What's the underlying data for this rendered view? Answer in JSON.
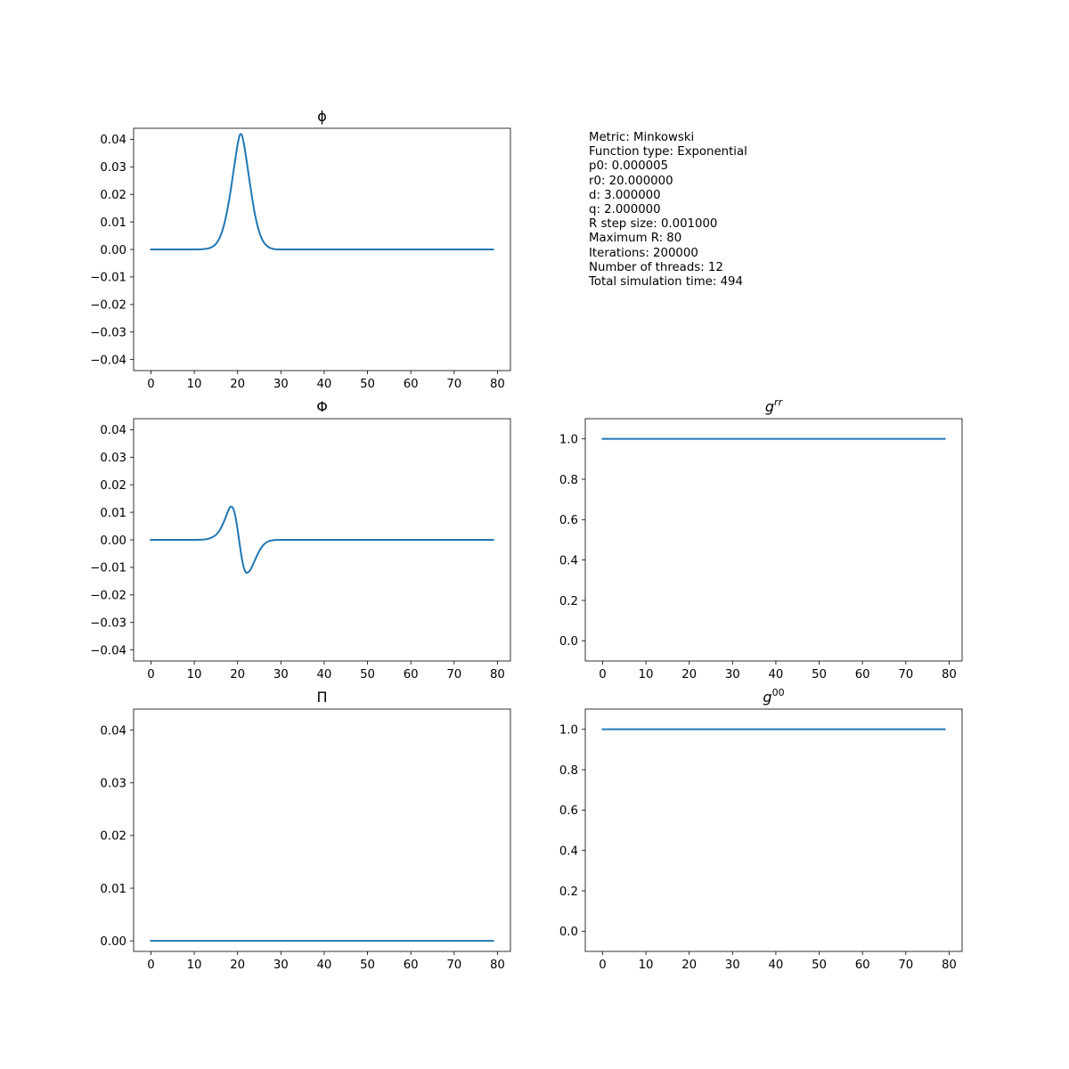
{
  "info_panel": [
    "Metric: Minkowski",
    "Function type: Exponential",
    "p0: 0.000005",
    "r0: 20.000000",
    "d: 3.000000",
    "q: 2.000000",
    "R step size: 0.001000",
    "Maximum R: 80",
    "Iterations: 200000",
    "Number of threads: 12",
    "Total simulation time: 494"
  ],
  "line_color": "#1f77b4",
  "chart_data": [
    {
      "id": "phi",
      "type": "line",
      "title_base": "ϕ",
      "title_sup": "",
      "xlim": [
        -4,
        83
      ],
      "ylim": [
        -0.044,
        0.044
      ],
      "xticks": [
        "0",
        "10",
        "20",
        "30",
        "40",
        "50",
        "60",
        "70",
        "80"
      ],
      "yticks": [
        "−0.04",
        "−0.03",
        "−0.02",
        "−0.01",
        "0.00",
        "0.01",
        "0.02",
        "0.03",
        "0.04"
      ],
      "x": [
        0,
        10,
        12,
        13,
        14,
        15,
        16,
        17,
        18,
        19,
        19.5,
        20,
        20.5,
        21,
        21.5,
        22,
        23,
        24,
        25,
        26,
        27,
        28,
        30,
        40,
        50,
        60,
        70,
        79
      ],
      "y": [
        0,
        0,
        0.0001,
        0.0003,
        0.0008,
        0.002,
        0.0047,
        0.0097,
        0.0175,
        0.0277,
        0.0331,
        0.038,
        0.0415,
        0.0415,
        0.038,
        0.0331,
        0.0224,
        0.0128,
        0.0064,
        0.0027,
        0.001,
        0.0003,
        0,
        0,
        0,
        0,
        0,
        0
      ]
    },
    {
      "id": "Phi",
      "type": "line",
      "title_base": "Φ",
      "title_sup": "",
      "xlim": [
        -4,
        83
      ],
      "ylim": [
        -0.044,
        0.044
      ],
      "xticks": [
        "0",
        "10",
        "20",
        "30",
        "40",
        "50",
        "60",
        "70",
        "80"
      ],
      "yticks": [
        "−0.04",
        "−0.03",
        "−0.02",
        "−0.01",
        "0.00",
        "0.01",
        "0.02",
        "0.03",
        "0.04"
      ],
      "x": [
        0,
        10,
        12,
        13,
        14,
        15,
        16,
        17,
        18,
        18.5,
        19,
        19.5,
        20,
        20.5,
        21,
        21.5,
        22,
        22.5,
        23,
        24,
        25,
        26,
        27,
        28,
        30,
        40,
        50,
        60,
        70,
        79
      ],
      "y": [
        0,
        0,
        0.0001,
        0.0003,
        0.0008,
        0.0018,
        0.0038,
        0.0072,
        0.0112,
        0.0121,
        0.0113,
        0.0085,
        0.0038,
        -0.0018,
        -0.0068,
        -0.0104,
        -0.0119,
        -0.0117,
        -0.0108,
        -0.0074,
        -0.0041,
        -0.0018,
        -0.0006,
        -0.0002,
        0,
        0,
        0,
        0,
        0,
        0
      ]
    },
    {
      "id": "grr",
      "type": "line",
      "title_base": "g",
      "title_sup": "rr",
      "xlim": [
        -4,
        83
      ],
      "ylim": [
        -0.1,
        1.1
      ],
      "xticks": [
        "0",
        "10",
        "20",
        "30",
        "40",
        "50",
        "60",
        "70",
        "80"
      ],
      "yticks": [
        "0.0",
        "0.2",
        "0.4",
        "0.6",
        "0.8",
        "1.0"
      ],
      "x": [
        0,
        79
      ],
      "y": [
        1.0,
        1.0
      ]
    },
    {
      "id": "Pi",
      "type": "line",
      "title_base": "Π",
      "title_sup": "",
      "xlim": [
        -4,
        83
      ],
      "ylim": [
        -0.002,
        0.044
      ],
      "xticks": [
        "0",
        "10",
        "20",
        "30",
        "40",
        "50",
        "60",
        "70",
        "80"
      ],
      "yticks": [
        "0.00",
        "0.01",
        "0.02",
        "0.03",
        "0.04"
      ],
      "x": [
        0,
        79
      ],
      "y": [
        0,
        0
      ]
    },
    {
      "id": "g00",
      "type": "line",
      "title_base": "g",
      "title_sup": "00",
      "xlim": [
        -4,
        83
      ],
      "ylim": [
        -0.1,
        1.1
      ],
      "xticks": [
        "0",
        "10",
        "20",
        "30",
        "40",
        "50",
        "60",
        "70",
        "80"
      ],
      "yticks": [
        "0.0",
        "0.2",
        "0.4",
        "0.6",
        "0.8",
        "1.0"
      ],
      "x": [
        0,
        79
      ],
      "y": [
        1.0,
        1.0
      ]
    }
  ]
}
